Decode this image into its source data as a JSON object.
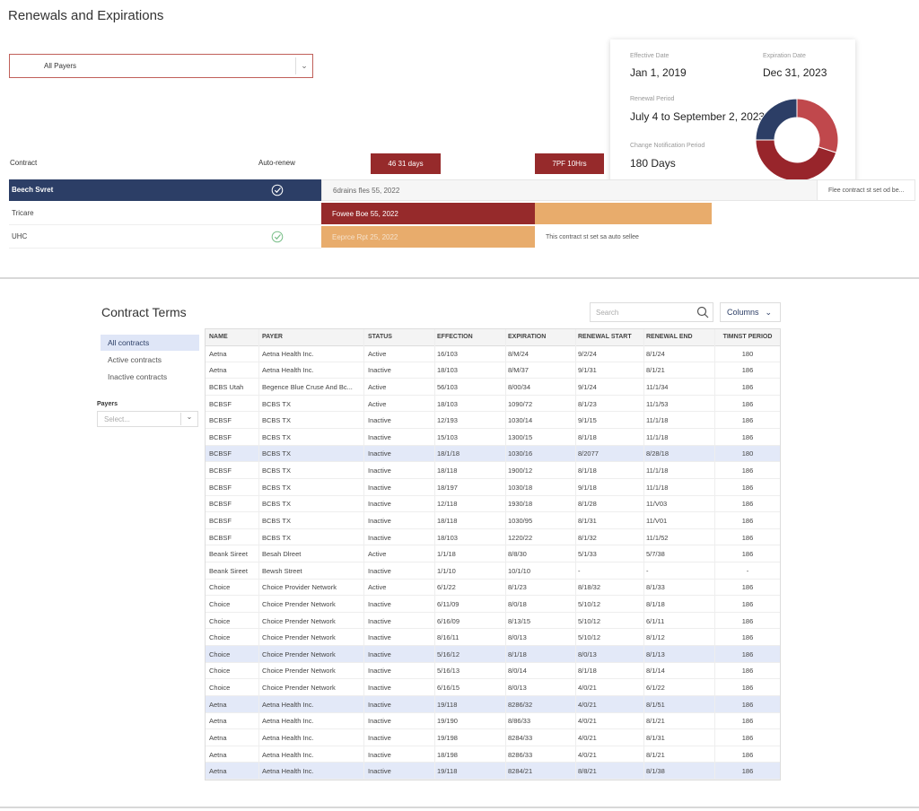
{
  "header": {
    "title": "Renewals and Expirations"
  },
  "filter": {
    "value": "All Payers"
  },
  "summary": {
    "effective_date_label": "Effective Date",
    "effective_date": "Jan 1, 2019",
    "expiration_date_label": "Expiration Date",
    "expiration_date": "Dec 31, 2023",
    "renewal_period_label": "Renewal Period",
    "renewal_period": "July 4 to September 2, 2023",
    "notification_period_label": "Change Notification Period",
    "notification_period": "180 Days"
  },
  "donut": {
    "values": [
      30,
      45,
      25
    ],
    "colors": [
      "#c0484c",
      "#98252b",
      "#2c3e66"
    ]
  },
  "timeline": {
    "headers": [
      "Contract",
      "Auto-renew"
    ],
    "badges": [
      "46 31 days",
      "7PF 10Hrs"
    ],
    "rows": [
      {
        "name": "Beech Svret",
        "auto_renew": true,
        "selected": true,
        "bar_text": "6drains fles 55, 2022",
        "note": "Flee contract st set od be..."
      },
      {
        "name": "Tricare",
        "auto_renew": false,
        "selected": false,
        "bar_text": "Fowee Boe 55, 2022"
      },
      {
        "name": "UHC",
        "auto_renew": true,
        "selected": false,
        "bar_text": "Eeprce Rpt 25, 2022",
        "note": "This contract st set sa auto sellee"
      }
    ]
  },
  "contract_terms": {
    "title": "Contract Terms",
    "search_placeholder": "Search",
    "columns_button": "Columns",
    "nav": [
      {
        "label": "All contracts",
        "selected": true
      },
      {
        "label": "Active contracts",
        "selected": false
      },
      {
        "label": "Inactive contracts",
        "selected": false
      }
    ],
    "payers_label": "Payers",
    "payers_placeholder": "Select...",
    "table": {
      "headers": [
        "NAME",
        "PAYER",
        "STATUS",
        "EFFECTION",
        "EXPIRATION",
        "RENEWAL START",
        "RENEWAL END",
        "TIMNST PERIOD"
      ],
      "rows": [
        {
          "cells": [
            "Aetna",
            "Aetna Health Inc.",
            "Active",
            "16/103",
            "8/M/24",
            "9/2/24",
            "8/1/24",
            "180"
          ],
          "highlighted": false
        },
        {
          "cells": [
            "Aetna",
            "Aetna Health Inc.",
            "Inactive",
            "18/103",
            "8/M/37",
            "9/1/31",
            "8/1/21",
            "186"
          ],
          "highlighted": false
        },
        {
          "cells": [
            "BCBS Utah",
            "Begence Blue Cruse And Bc...",
            "Active",
            "56/103",
            "8/00/34",
            "9/1/24",
            "11/1/34",
            "186"
          ],
          "highlighted": false
        },
        {
          "cells": [
            "BCBSF",
            "BCBS TX",
            "Active",
            "18/103",
            "1090/72",
            "8/1/23",
            "11/1/53",
            "186"
          ],
          "highlighted": false
        },
        {
          "cells": [
            "BCBSF",
            "BCBS TX",
            "Inactive",
            "12/193",
            "1030/14",
            "9/1/15",
            "11/1/18",
            "186"
          ],
          "highlighted": false
        },
        {
          "cells": [
            "BCBSF",
            "BCBS TX",
            "Inactive",
            "15/103",
            "1300/15",
            "8/1/18",
            "11/1/18",
            "186"
          ],
          "highlighted": false
        },
        {
          "cells": [
            "BCBSF",
            "BCBS TX",
            "Inactive",
            "18/1/18",
            "1030/16",
            "8/2077",
            "8/28/18",
            "180"
          ],
          "highlighted": true
        },
        {
          "cells": [
            "BCBSF",
            "BCBS TX",
            "Inactive",
            "18/118",
            "1900/12",
            "8/1/18",
            "11/1/18",
            "186"
          ],
          "highlighted": false
        },
        {
          "cells": [
            "BCBSF",
            "BCBS TX",
            "Inactive",
            "18/197",
            "1030/18",
            "9/1/18",
            "11/1/18",
            "186"
          ],
          "highlighted": false
        },
        {
          "cells": [
            "BCBSF",
            "BCBS TX",
            "Inactive",
            "12/118",
            "1930/18",
            "8/1/28",
            "11/V03",
            "186"
          ],
          "highlighted": false
        },
        {
          "cells": [
            "BCBSF",
            "BCBS TX",
            "Inactive",
            "18/118",
            "1030/95",
            "8/1/31",
            "11/V01",
            "186"
          ],
          "highlighted": false
        },
        {
          "cells": [
            "BCBSF",
            "BCBS TX",
            "Inactive",
            "18/103",
            "1220/22",
            "8/1/32",
            "11/1/52",
            "186"
          ],
          "highlighted": false
        },
        {
          "cells": [
            "Beank Sireet",
            "Besah Dlreet",
            "Active",
            "1/1/18",
            "8/8/30",
            "5/1/33",
            "5/7/38",
            "186"
          ],
          "highlighted": false
        },
        {
          "cells": [
            "Beank Sireet",
            "Bewsh Street",
            "Inactive",
            "1/1/10",
            "10/1/10",
            "-",
            "-",
            "-"
          ],
          "highlighted": false
        },
        {
          "cells": [
            "Choice",
            "Choice Provider Network",
            "Active",
            "6/1/22",
            "8/1/23",
            "8/18/32",
            "8/1/33",
            "186"
          ],
          "highlighted": false
        },
        {
          "cells": [
            "Choice",
            "Choice Prender Network",
            "Inactive",
            "6/11/09",
            "8/0/18",
            "5/10/12",
            "8/1/18",
            "186"
          ],
          "highlighted": false
        },
        {
          "cells": [
            "Choice",
            "Choice Prender Network",
            "Inactive",
            "6/16/09",
            "8/13/15",
            "5/10/12",
            "6/1/11",
            "186"
          ],
          "highlighted": false
        },
        {
          "cells": [
            "Choice",
            "Choice Prender Network",
            "Inactive",
            "8/16/11",
            "8/0/13",
            "5/10/12",
            "8/1/12",
            "186"
          ],
          "highlighted": false
        },
        {
          "cells": [
            "Choice",
            "Choice Prender Network",
            "Inactive",
            "5/16/12",
            "8/1/18",
            "8/0/13",
            "8/1/13",
            "186"
          ],
          "highlighted": true
        },
        {
          "cells": [
            "Choice",
            "Choice Prender Network",
            "Inactive",
            "5/16/13",
            "8/0/14",
            "8/1/18",
            "8/1/14",
            "186"
          ],
          "highlighted": false
        },
        {
          "cells": [
            "Choice",
            "Choice Prender Network",
            "Inactive",
            "6/16/15",
            "8/0/13",
            "4/0/21",
            "6/1/22",
            "186"
          ],
          "highlighted": false
        },
        {
          "cells": [
            "Aetna",
            "Aetna Health Inc.",
            "Inactive",
            "19/118",
            "8286/32",
            "4/0/21",
            "8/1/51",
            "186"
          ],
          "highlighted": true
        },
        {
          "cells": [
            "Aetna",
            "Aetna Health Inc.",
            "Inactive",
            "19/190",
            "8/86/33",
            "4/0/21",
            "8/1/21",
            "186"
          ],
          "highlighted": false
        },
        {
          "cells": [
            "Aetna",
            "Aetna Health Inc.",
            "Inactive",
            "19/198",
            "8284/33",
            "4/0/21",
            "8/1/31",
            "186"
          ],
          "highlighted": false
        },
        {
          "cells": [
            "Aetna",
            "Aetna Health Inc.",
            "Inactive",
            "18/198",
            "8286/33",
            "4/0/21",
            "8/1/21",
            "186"
          ],
          "highlighted": false
        },
        {
          "cells": [
            "Aetna",
            "Aetna Health Inc.",
            "Inactive",
            "19/118",
            "8284/21",
            "8/8/21",
            "8/1/38",
            "186"
          ],
          "highlighted": true
        }
      ]
    }
  }
}
